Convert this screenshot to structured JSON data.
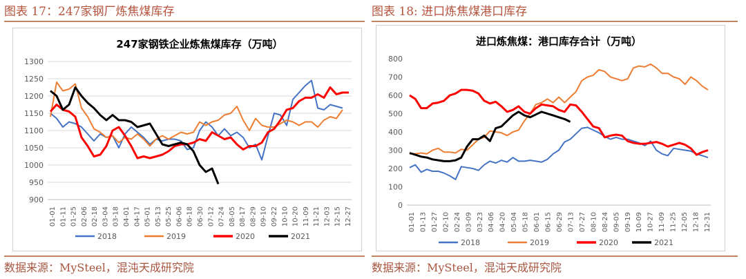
{
  "captions": {
    "left": "图表 17：247家钢厂炼焦煤库存",
    "right": "图表 18:  进口炼焦煤港口库存"
  },
  "sources": {
    "left": "数据来源：MySteel，混沌天成研究院",
    "right": "数据来源：MySteel，混沌天成研究院"
  },
  "chart_data": [
    {
      "type": "line",
      "title": "247家钢铁企业炼焦煤库存（万吨）",
      "xlabel": "",
      "ylabel": "",
      "ylim": [
        900,
        1300
      ],
      "yticks": [
        900,
        950,
        1000,
        1050,
        1100,
        1150,
        1200,
        1250,
        1300
      ],
      "xticks": [
        "01-01",
        "01-11",
        "01-25",
        "02-06",
        "02-18",
        "03-04",
        "03-18",
        "04-01",
        "04-17",
        "05-01",
        "05-13",
        "05-25",
        "06-06",
        "06-18",
        "06-30",
        "07-12",
        "07-24",
        "08-05",
        "08-17",
        "08-29",
        "09-10",
        "09-22",
        "10-10",
        "10-20",
        "11-09",
        "11-21",
        "12-03",
        "12-15",
        "12-27"
      ],
      "legend": "bottom",
      "grid": true,
      "series": [
        {
          "name": "2018",
          "color": "#4472c4",
          "values": [
            1150,
            1135,
            1110,
            1125,
            1120,
            1110,
            1090,
            1070,
            1090,
            1080,
            1085,
            1050,
            1090,
            1110,
            1095,
            1080,
            1060,
            1075,
            1070,
            1075,
            1075,
            1070,
            1045,
            1050,
            1100,
            1125,
            1110,
            1085,
            1105,
            1085,
            1095,
            1080,
            1050,
            1060,
            1015,
            1085,
            1150,
            1145,
            1115,
            1190,
            1210,
            1230,
            1245,
            1165,
            1160,
            1175,
            1170,
            1165
          ]
        },
        {
          "name": "2019",
          "color": "#ed7d31",
          "values": [
            1140,
            1240,
            1215,
            1220,
            1235,
            1165,
            1140,
            1105,
            1095,
            1080,
            1085,
            1065,
            1080,
            1075,
            1090,
            1075,
            1055,
            1075,
            1085,
            1075,
            1085,
            1095,
            1090,
            1095,
            1125,
            1115,
            1125,
            1130,
            1145,
            1150,
            1170,
            1130,
            1100,
            1135,
            1115,
            1110,
            1110,
            1120,
            1130,
            1125,
            1115,
            1125,
            1125,
            1110,
            1130,
            1140,
            1135,
            1160
          ]
        },
        {
          "name": "2020",
          "color": "#ff0000",
          "values": [
            1155,
            1175,
            1160,
            1155,
            1140,
            1080,
            1055,
            1025,
            1030,
            1055,
            1100,
            1110,
            1085,
            1055,
            1020,
            1025,
            1020,
            1025,
            1030,
            1040,
            1055,
            1060,
            1060,
            1065,
            1075,
            1070,
            1095,
            1085,
            1075,
            1080,
            1060,
            1045,
            1055,
            1055,
            1065,
            1095,
            1105,
            1130,
            1160,
            1165,
            1185,
            1195,
            1195,
            1205,
            1195,
            1225,
            1205,
            1210,
            1210
          ]
        },
        {
          "name": "2021",
          "color": "#000000",
          "values": [
            1215,
            1200,
            1160,
            1175,
            1225,
            1200,
            1180,
            1165,
            1145,
            1130,
            1145,
            1130,
            1130,
            1125,
            1110,
            1115,
            1120,
            1090,
            1060,
            1055,
            1060,
            1065,
            1060,
            1040,
            1000,
            980,
            990,
            945
          ]
        }
      ]
    },
    {
      "type": "line",
      "title": "进口炼焦煤：港口库存合计（万吨）",
      "xlabel": "",
      "ylabel": "",
      "ylim": [
        0,
        800
      ],
      "yticks": [
        0,
        100,
        200,
        300,
        400,
        500,
        600,
        700,
        800
      ],
      "xticks": [
        "01-01",
        "01-13",
        "01-27",
        "02-10",
        "02-24",
        "03-09",
        "03-23",
        "04-06",
        "04-20",
        "05-04",
        "05-18",
        "06-01",
        "06-15",
        "06-29",
        "07-13",
        "07-27",
        "08-10",
        "08-24",
        "09-05",
        "09-19",
        "10-09",
        "10-27",
        "11-09",
        "11-25",
        "12-05",
        "12-18",
        "12-31"
      ],
      "legend": "bottom",
      "grid": false,
      "series": [
        {
          "name": "2018",
          "color": "#4472c4",
          "values": [
            205,
            220,
            180,
            195,
            185,
            185,
            175,
            160,
            140,
            210,
            205,
            200,
            190,
            220,
            240,
            230,
            245,
            235,
            260,
            240,
            240,
            245,
            240,
            235,
            250,
            280,
            300,
            345,
            360,
            390,
            420,
            425,
            410,
            395,
            375,
            360,
            370,
            360,
            360,
            350,
            340,
            325,
            350,
            300,
            280,
            270,
            310,
            305,
            300,
            295,
            280,
            270,
            260
          ]
        },
        {
          "name": "2019",
          "color": "#ed7d31",
          "values": [
            280,
            280,
            285,
            280,
            300,
            310,
            290,
            290,
            285,
            305,
            300,
            330,
            360,
            370,
            405,
            400,
            395,
            380,
            400,
            410,
            460,
            500,
            550,
            560,
            580,
            560,
            590,
            560,
            590,
            620,
            680,
            700,
            710,
            740,
            730,
            700,
            690,
            680,
            690,
            750,
            760,
            755,
            770,
            750,
            720,
            720,
            700,
            690,
            660,
            700,
            680,
            650,
            630
          ]
        },
        {
          "name": "2020",
          "color": "#ff0000",
          "values": [
            600,
            580,
            530,
            530,
            555,
            560,
            570,
            600,
            610,
            630,
            630,
            625,
            610,
            570,
            555,
            565,
            540,
            510,
            520,
            540,
            510,
            500,
            530,
            550,
            545,
            540,
            520,
            510,
            550,
            545,
            510,
            470,
            430,
            420,
            370,
            380,
            385,
            380,
            350,
            340,
            335,
            335,
            340,
            345,
            335,
            320,
            330,
            340,
            330,
            310,
            275,
            290,
            300
          ]
        },
        {
          "name": "2021",
          "color": "#000000",
          "values": [
            285,
            275,
            265,
            260,
            250,
            245,
            240,
            240,
            245,
            260,
            320,
            360,
            360,
            380,
            350,
            420,
            430,
            460,
            490,
            510,
            490,
            480,
            495,
            510,
            500,
            490,
            480,
            470,
            455
          ]
        }
      ]
    }
  ]
}
